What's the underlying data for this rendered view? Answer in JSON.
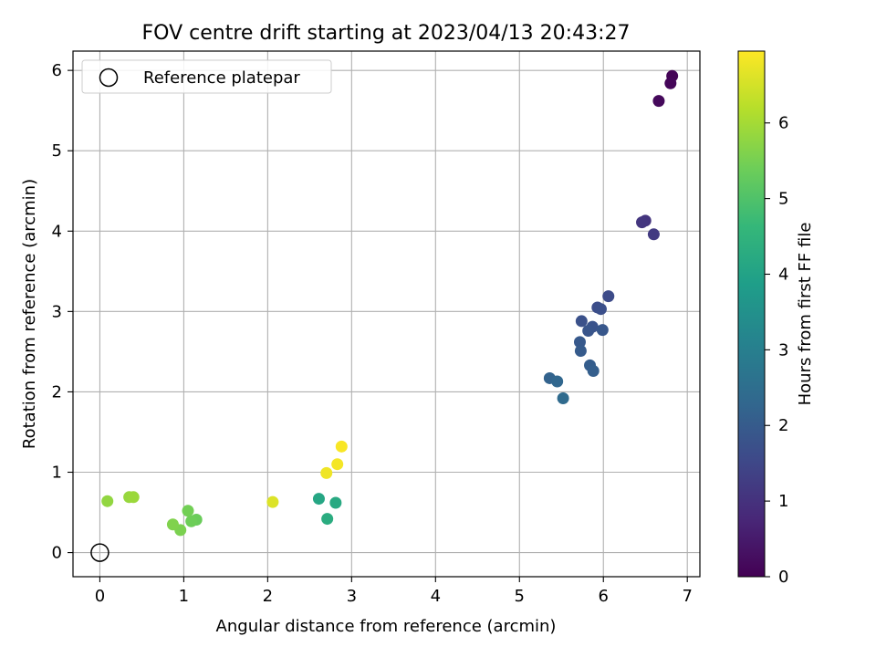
{
  "chart_data": {
    "type": "scatter",
    "title": "FOV centre drift starting at 2023/04/13 20:43:27",
    "xlabel": "Angular distance from reference (arcmin)",
    "ylabel": "Rotation from reference (arcmin)",
    "xlim": [
      -0.32,
      7.15
    ],
    "ylim": [
      -0.3,
      6.24
    ],
    "xticks": [
      "0",
      "1",
      "2",
      "3",
      "4",
      "5",
      "6",
      "7"
    ],
    "yticks": [
      "0",
      "1",
      "2",
      "3",
      "4",
      "5",
      "6"
    ],
    "grid": true,
    "legend": {
      "placement": "top-left",
      "entries": [
        "Reference platepar"
      ]
    },
    "reference_point": {
      "x": 0,
      "y": 0
    },
    "colorbar": {
      "label": "Hours from first FF file",
      "range": [
        0,
        6.95
      ],
      "ticks": [
        "0",
        "1",
        "2",
        "3",
        "4",
        "5",
        "6"
      ],
      "colormap": "viridis"
    },
    "points": [
      {
        "x": 6.82,
        "y": 5.93,
        "h": 0.05
      },
      {
        "x": 6.8,
        "y": 5.84,
        "h": 0.1
      },
      {
        "x": 6.66,
        "y": 5.62,
        "h": 0.15
      },
      {
        "x": 6.5,
        "y": 4.13,
        "h": 1.05
      },
      {
        "x": 6.46,
        "y": 4.11,
        "h": 1.1
      },
      {
        "x": 6.6,
        "y": 3.96,
        "h": 1.2
      },
      {
        "x": 6.06,
        "y": 3.19,
        "h": 1.6
      },
      {
        "x": 5.93,
        "y": 3.05,
        "h": 1.65
      },
      {
        "x": 5.97,
        "y": 3.03,
        "h": 1.7
      },
      {
        "x": 5.74,
        "y": 2.88,
        "h": 1.75
      },
      {
        "x": 5.87,
        "y": 2.81,
        "h": 1.8
      },
      {
        "x": 5.82,
        "y": 2.76,
        "h": 1.85
      },
      {
        "x": 5.99,
        "y": 2.77,
        "h": 1.9
      },
      {
        "x": 5.72,
        "y": 2.62,
        "h": 1.95
      },
      {
        "x": 5.73,
        "y": 2.51,
        "h": 2.0
      },
      {
        "x": 5.84,
        "y": 2.33,
        "h": 2.05
      },
      {
        "x": 5.88,
        "y": 2.26,
        "h": 2.1
      },
      {
        "x": 5.36,
        "y": 2.17,
        "h": 2.2
      },
      {
        "x": 5.45,
        "y": 2.13,
        "h": 2.3
      },
      {
        "x": 5.52,
        "y": 1.92,
        "h": 2.4
      },
      {
        "x": 2.61,
        "y": 0.67,
        "h": 4.1
      },
      {
        "x": 2.81,
        "y": 0.62,
        "h": 4.2
      },
      {
        "x": 2.71,
        "y": 0.42,
        "h": 4.3
      },
      {
        "x": 1.15,
        "y": 0.41,
        "h": 5.35
      },
      {
        "x": 1.09,
        "y": 0.39,
        "h": 5.4
      },
      {
        "x": 1.05,
        "y": 0.52,
        "h": 5.45
      },
      {
        "x": 0.96,
        "y": 0.28,
        "h": 5.55
      },
      {
        "x": 0.87,
        "y": 0.35,
        "h": 5.6
      },
      {
        "x": 0.09,
        "y": 0.64,
        "h": 5.8
      },
      {
        "x": 0.35,
        "y": 0.69,
        "h": 5.85
      },
      {
        "x": 0.4,
        "y": 0.69,
        "h": 5.9
      },
      {
        "x": 2.06,
        "y": 0.63,
        "h": 6.6
      },
      {
        "x": 2.7,
        "y": 0.99,
        "h": 6.8
      },
      {
        "x": 2.83,
        "y": 1.1,
        "h": 6.85
      },
      {
        "x": 2.88,
        "y": 1.32,
        "h": 6.9
      }
    ]
  }
}
